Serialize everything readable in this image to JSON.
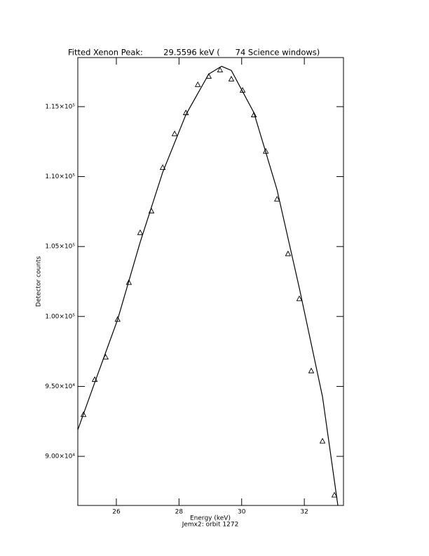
{
  "chart_data": {
    "type": "scatter",
    "title": "Fitted Xenon Peak:        29.5596 keV (      74 Science windows)",
    "x_label": "Energy (keV)",
    "subtitle": "Jemx2: orbit 1272",
    "y_label": "Detector counts",
    "xlim": [
      24.77,
      33.25
    ],
    "ylim": [
      86490,
      118510
    ],
    "xticks": [
      26,
      28,
      30,
      32
    ],
    "yticks": [
      {
        "value": 90000,
        "label": "9.00×10⁴"
      },
      {
        "value": 95000,
        "label": "9.50×10⁴"
      },
      {
        "value": 100000,
        "label": "1.00×10⁵"
      },
      {
        "value": 105000,
        "label": "1.05×10⁵"
      },
      {
        "value": 110000,
        "label": "1.10×10⁵"
      },
      {
        "value": 115000,
        "label": "1.15×10⁵"
      }
    ],
    "series": [
      {
        "marker": "triangle",
        "color": "#000000",
        "x": [
          24.95,
          25.31,
          25.66,
          26.04,
          26.4,
          26.76,
          27.12,
          27.48,
          27.86,
          28.22,
          28.6,
          28.95,
          29.31,
          29.67,
          30.03,
          30.39,
          30.77,
          31.13,
          31.48,
          31.84,
          32.22,
          32.58,
          32.96
        ],
        "values": [
          93000,
          95500,
          97100,
          99800,
          102440,
          106000,
          107550,
          110660,
          113070,
          114570,
          116580,
          117180,
          117630,
          116980,
          116180,
          114420,
          111820,
          108400,
          104490,
          101280,
          96120,
          91100,
          87240
        ]
      },
      {
        "marker": "line",
        "color": "#000000",
        "x": [
          24.77,
          25.31,
          26.04,
          26.76,
          27.48,
          28.22,
          28.95,
          29.36,
          29.67,
          30.39,
          31.13,
          31.84,
          32.58,
          33.07
        ],
        "values": [
          91900,
          95270,
          99780,
          105300,
          110310,
          114430,
          117330,
          117890,
          117590,
          114570,
          109060,
          102040,
          94260,
          86490
        ]
      }
    ]
  }
}
